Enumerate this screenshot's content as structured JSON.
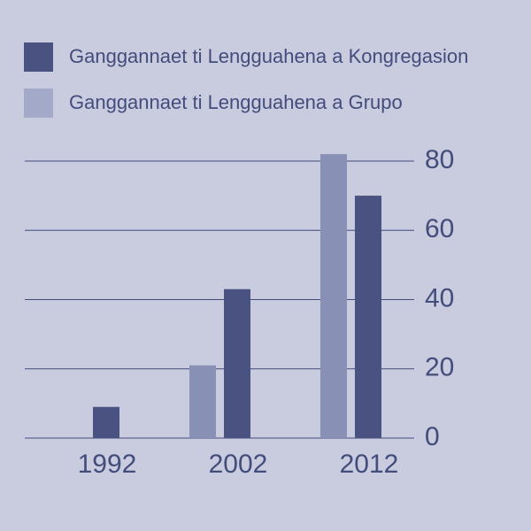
{
  "chart_data": {
    "type": "bar",
    "categories": [
      "1992",
      "2002",
      "2012"
    ],
    "series": [
      {
        "name": "Ganggannaet ti Lengguahena a Kongregasion",
        "color": "#4a5282",
        "values": [
          9,
          43,
          70
        ]
      },
      {
        "name": "Ganggannaet ti Lengguahena a Grupo",
        "color": "#8890b6",
        "values": [
          null,
          21,
          82
        ]
      }
    ],
    "ylim": [
      0,
      85
    ],
    "yticks": [
      0,
      20,
      40,
      60,
      80
    ],
    "grid": true
  }
}
